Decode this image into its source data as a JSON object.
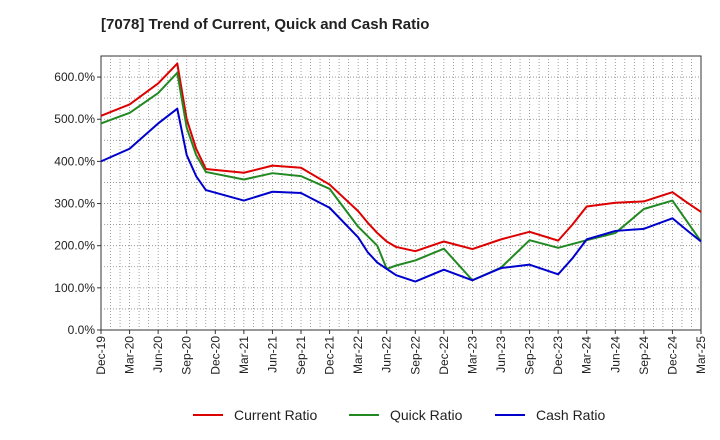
{
  "chart_data": {
    "type": "line",
    "title": "[7078]  Trend of Current, Quick and Cash Ratio",
    "xlabel": "",
    "ylabel": "",
    "ylim": [
      0,
      650
    ],
    "y_ticks": [
      0,
      100,
      200,
      300,
      400,
      500,
      600
    ],
    "y_tick_labels": [
      "0.0%",
      "100.0%",
      "200.0%",
      "300.0%",
      "400.0%",
      "500.0%",
      "600.0%"
    ],
    "x_tick_labels": [
      "Dec-19",
      "Mar-20",
      "Jun-20",
      "Sep-20",
      "Dec-20",
      "Mar-21",
      "Jun-21",
      "Sep-21",
      "Dec-21",
      "Mar-22",
      "Jun-22",
      "Sep-22",
      "Dec-22",
      "Mar-23",
      "Jun-23",
      "Sep-23",
      "Dec-23",
      "Mar-24",
      "Jun-24",
      "Sep-24",
      "Dec-24",
      "Mar-25"
    ],
    "grid": true,
    "legend_position": "bottom",
    "series": [
      {
        "name": "Current Ratio",
        "color": "#dd0000",
        "points": [
          [
            0,
            508
          ],
          [
            1,
            535
          ],
          [
            2,
            585
          ],
          [
            2.67,
            632
          ],
          [
            3,
            500
          ],
          [
            3.33,
            430
          ],
          [
            3.67,
            382
          ],
          [
            5,
            373
          ],
          [
            6,
            390
          ],
          [
            7,
            385
          ],
          [
            8,
            345
          ],
          [
            9,
            282
          ],
          [
            9.33,
            255
          ],
          [
            9.67,
            230
          ],
          [
            10,
            210
          ],
          [
            10.33,
            197
          ],
          [
            11,
            187
          ],
          [
            12,
            210
          ],
          [
            13,
            192
          ],
          [
            14,
            215
          ],
          [
            15,
            233
          ],
          [
            16,
            212
          ],
          [
            16.5,
            250
          ],
          [
            17,
            293
          ],
          [
            18,
            302
          ],
          [
            19,
            305
          ],
          [
            20,
            327
          ],
          [
            20.5,
            303
          ],
          [
            21,
            280
          ]
        ]
      },
      {
        "name": "Quick Ratio",
        "color": "#228822",
        "points": [
          [
            0,
            490
          ],
          [
            1,
            515
          ],
          [
            2,
            562
          ],
          [
            2.67,
            610
          ],
          [
            3,
            480
          ],
          [
            3.33,
            415
          ],
          [
            3.67,
            375
          ],
          [
            5,
            357
          ],
          [
            6,
            372
          ],
          [
            7,
            365
          ],
          [
            8,
            335
          ],
          [
            9,
            245
          ],
          [
            9.67,
            200
          ],
          [
            10,
            145
          ],
          [
            10.33,
            153
          ],
          [
            11,
            165
          ],
          [
            12,
            193
          ],
          [
            13,
            118
          ],
          [
            14,
            148
          ],
          [
            15,
            213
          ],
          [
            16,
            195
          ],
          [
            17,
            213
          ],
          [
            18,
            230
          ],
          [
            19,
            287
          ],
          [
            20,
            307
          ],
          [
            21,
            210
          ]
        ]
      },
      {
        "name": "Cash Ratio",
        "color": "#0000cc",
        "points": [
          [
            0,
            400
          ],
          [
            1,
            430
          ],
          [
            2,
            490
          ],
          [
            2.67,
            525
          ],
          [
            3,
            415
          ],
          [
            3.33,
            365
          ],
          [
            3.67,
            332
          ],
          [
            5,
            307
          ],
          [
            6,
            328
          ],
          [
            7,
            325
          ],
          [
            8,
            290
          ],
          [
            9,
            220
          ],
          [
            9.33,
            185
          ],
          [
            9.67,
            160
          ],
          [
            10,
            145
          ],
          [
            10.33,
            130
          ],
          [
            11,
            115
          ],
          [
            12,
            143
          ],
          [
            13,
            118
          ],
          [
            14,
            147
          ],
          [
            15,
            155
          ],
          [
            16,
            132
          ],
          [
            16.5,
            170
          ],
          [
            17,
            215
          ],
          [
            18,
            235
          ],
          [
            19,
            240
          ],
          [
            20,
            265
          ],
          [
            20.5,
            237
          ],
          [
            21,
            210
          ]
        ]
      }
    ]
  }
}
